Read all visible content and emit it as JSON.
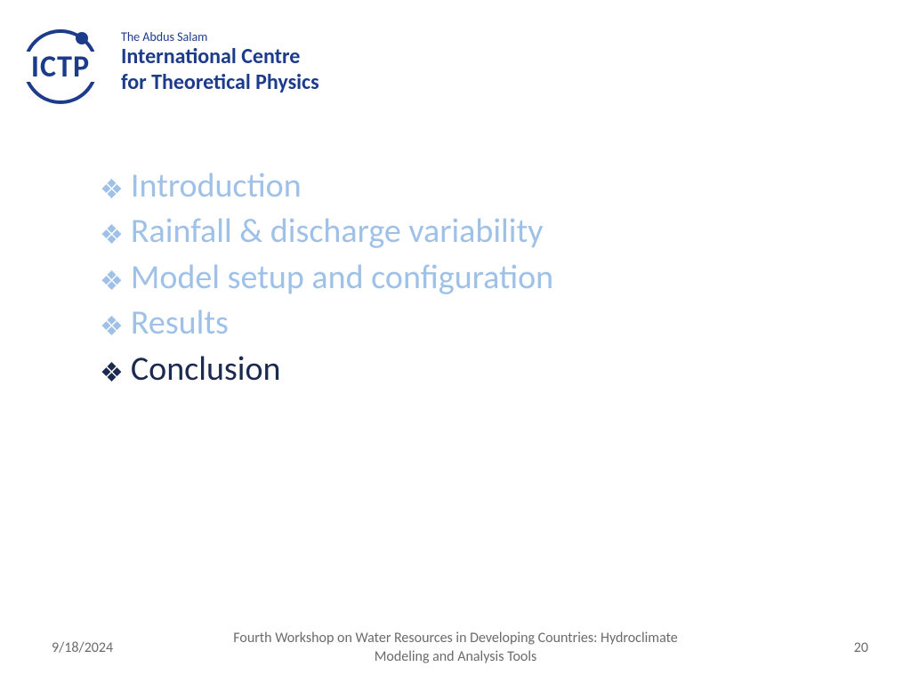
{
  "logo": {
    "acronym": "ICTP",
    "top_line": "The Abdus Salam",
    "main_line1": "International Centre",
    "main_line2": "for Theoretical Physics",
    "color": "#1d3b8b"
  },
  "outline": {
    "items": [
      {
        "label": "Introduction",
        "active": false
      },
      {
        "label": "Rainfall & discharge variability",
        "active": false
      },
      {
        "label": "Model setup and configuration",
        "active": false
      },
      {
        "label": "Results",
        "active": false
      },
      {
        "label": "Conclusion",
        "active": true
      }
    ],
    "bullet_glyph": "❖",
    "colors": {
      "inactive_text": "#9fc1e8",
      "inactive_bullet": "#9fc1e8",
      "active_text": "#1b2a4e",
      "active_bullet": "#1b2a4e"
    },
    "fontsize_pt": 28
  },
  "footer": {
    "date": "9/18/2024",
    "title": "Fourth Workshop on Water Resources in Developing Countries: Hydroclimate Modeling and Analysis Tools",
    "page": "20",
    "color": "#6b6b6b"
  },
  "background_color": "#ffffff"
}
